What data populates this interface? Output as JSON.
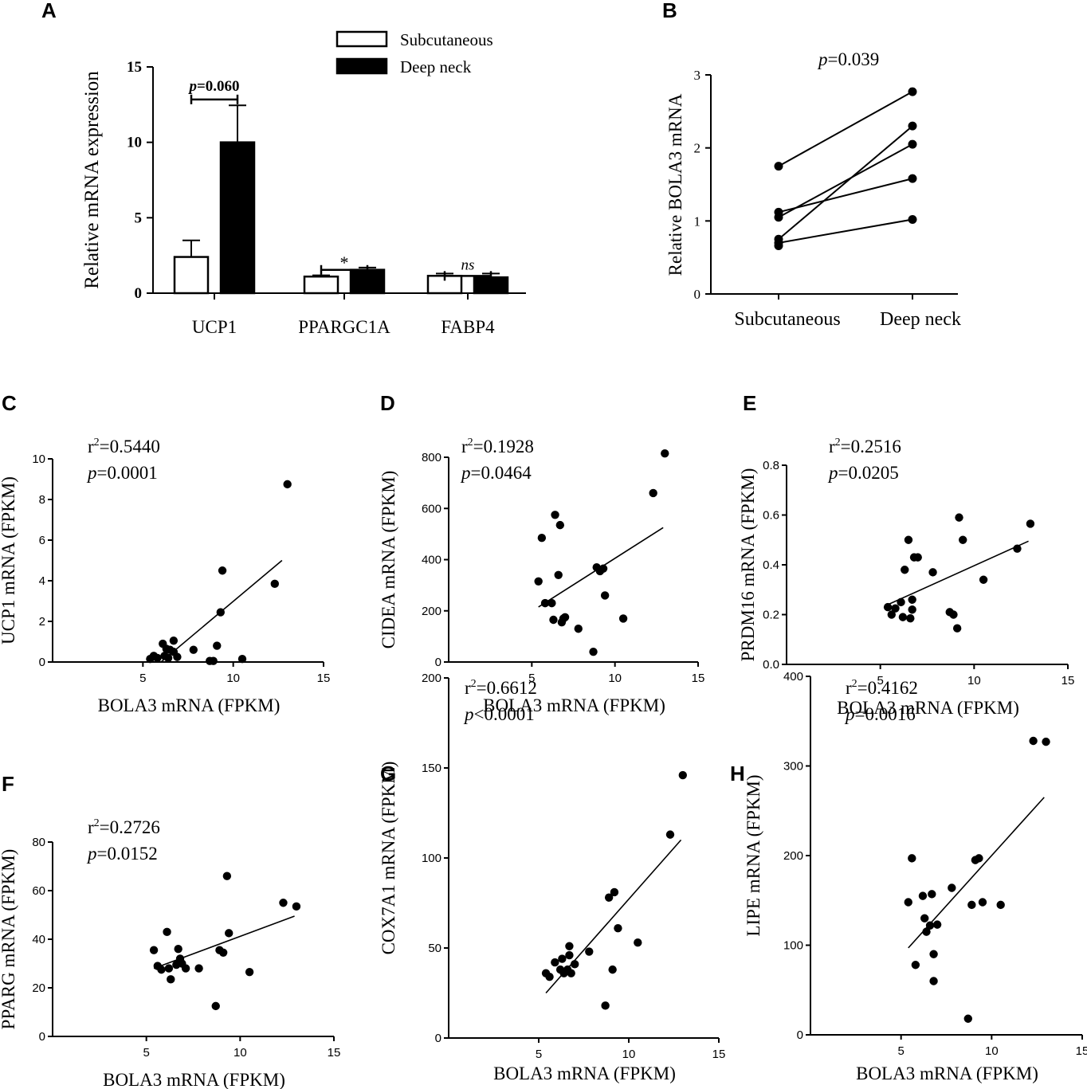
{
  "chart_data": [
    {
      "panel": "A",
      "type": "bar",
      "ylabel": "Relative mRNA expression",
      "ylim": [
        0,
        15
      ],
      "yticks": [
        0,
        5,
        10,
        15
      ],
      "categories": [
        "UCP1",
        "PPARGC1A",
        "FABP4"
      ],
      "series": [
        {
          "name": "Subcutaneous",
          "color": "#ffffff",
          "values": [
            2.4,
            1.1,
            1.15
          ],
          "errors": [
            1.1,
            0.08,
            0.15
          ]
        },
        {
          "name": "Deep neck",
          "color": "#000000",
          "values": [
            10.0,
            1.55,
            1.05
          ],
          "errors": [
            2.45,
            0.15,
            0.25
          ]
        }
      ],
      "annotations": [
        {
          "category": 0,
          "prefix": "p",
          "text": "=0.060",
          "style": "p-bold",
          "y": 13.9
        },
        {
          "category": 1,
          "text": "*",
          "style": "plain",
          "y": 2.6
        },
        {
          "category": 2,
          "text": "ns",
          "style": "italic",
          "y": 2.2
        }
      ]
    },
    {
      "panel": "B",
      "type": "line",
      "ylabel": "Relative BOLA3 mRNA",
      "categories": [
        "Subcutaneous",
        "Deep neck"
      ],
      "ylim": [
        0,
        3
      ],
      "yticks": [
        0,
        1,
        2,
        3
      ],
      "pairs": [
        [
          1.75,
          2.77
        ],
        [
          1.12,
          1.58
        ],
        [
          1.05,
          2.05
        ],
        [
          0.75,
          2.3
        ],
        [
          0.7,
          1.02
        ]
      ],
      "extra_points": [
        [
          0,
          0.66
        ]
      ],
      "stat_prefix": "p",
      "stat": "=0.039"
    },
    {
      "panel": "C",
      "type": "scatter",
      "xlabel": "BOLA3 mRNA (FPKM)",
      "ylabel": "UCP1 mRNA (FPKM)",
      "xlim": [
        0,
        15
      ],
      "ylim": [
        0,
        10
      ],
      "xticks": [
        5,
        10,
        15
      ],
      "yticks": [
        0,
        2,
        4,
        6,
        8,
        10
      ],
      "r2": "=0.5440",
      "pval": "=0.0001",
      "fit": [
        [
          6.0,
          0.0
        ],
        [
          12.7,
          5.0
        ]
      ],
      "points": [
        [
          5.4,
          0.15
        ],
        [
          5.6,
          0.3
        ],
        [
          5.8,
          0.2
        ],
        [
          6.1,
          0.9
        ],
        [
          6.2,
          0.3
        ],
        [
          6.3,
          0.65
        ],
        [
          6.4,
          0.2
        ],
        [
          6.5,
          0.6
        ],
        [
          6.7,
          1.05
        ],
        [
          6.7,
          0.5
        ],
        [
          6.9,
          0.25
        ],
        [
          7.8,
          0.6
        ],
        [
          8.7,
          0.05
        ],
        [
          8.9,
          0.05
        ],
        [
          9.1,
          0.8
        ],
        [
          9.3,
          2.45
        ],
        [
          9.4,
          4.5
        ],
        [
          10.5,
          0.15
        ],
        [
          12.3,
          3.85
        ],
        [
          13.0,
          8.75
        ]
      ]
    },
    {
      "panel": "D",
      "type": "scatter",
      "xlabel": "BOLA3 mRNA (FPKM)",
      "ylabel": "CIDEA mRNA (FPKM)",
      "xlim": [
        0,
        15
      ],
      "ylim": [
        0,
        850
      ],
      "xticks": [
        5,
        10,
        15
      ],
      "yticks": [
        0,
        200,
        400,
        600,
        800
      ],
      "r2": "=0.1928",
      "pval": "=0.0464",
      "fit": [
        [
          5.4,
          215
        ],
        [
          12.9,
          525
        ]
      ],
      "points": [
        [
          5.4,
          315
        ],
        [
          5.6,
          485
        ],
        [
          5.8,
          230
        ],
        [
          6.2,
          230
        ],
        [
          6.3,
          165
        ],
        [
          6.4,
          575
        ],
        [
          6.6,
          340
        ],
        [
          6.7,
          535
        ],
        [
          6.8,
          155
        ],
        [
          6.9,
          170
        ],
        [
          7.0,
          175
        ],
        [
          7.8,
          130
        ],
        [
          8.7,
          40
        ],
        [
          8.9,
          370
        ],
        [
          9.1,
          355
        ],
        [
          9.3,
          365
        ],
        [
          9.4,
          260
        ],
        [
          10.5,
          170
        ],
        [
          12.3,
          660
        ],
        [
          13.0,
          815
        ]
      ]
    },
    {
      "panel": "E",
      "type": "scatter",
      "xlabel": "BOLA3 mRNA (FPKM)",
      "ylabel": "PRDM16 mRNA (FPKM)",
      "xlim": [
        0,
        15
      ],
      "ylim": [
        0,
        0.8
      ],
      "xticks": [
        5,
        10,
        15
      ],
      "yticks": [
        0,
        0.2,
        0.4,
        0.6,
        0.8
      ],
      "ytickfmt": 1,
      "r2": "=0.2516",
      "pval": "=0.0205",
      "fit": [
        [
          5.4,
          0.24
        ],
        [
          12.9,
          0.495
        ]
      ],
      "points": [
        [
          5.4,
          0.23
        ],
        [
          5.6,
          0.2
        ],
        [
          5.8,
          0.225
        ],
        [
          6.1,
          0.25
        ],
        [
          6.2,
          0.19
        ],
        [
          6.3,
          0.38
        ],
        [
          6.5,
          0.5
        ],
        [
          6.6,
          0.185
        ],
        [
          6.7,
          0.22
        ],
        [
          6.7,
          0.26
        ],
        [
          6.8,
          0.43
        ],
        [
          7.0,
          0.43
        ],
        [
          7.8,
          0.37
        ],
        [
          8.7,
          0.21
        ],
        [
          8.9,
          0.2
        ],
        [
          9.1,
          0.145
        ],
        [
          9.2,
          0.59
        ],
        [
          9.4,
          0.5
        ],
        [
          10.5,
          0.34
        ],
        [
          12.3,
          0.465
        ],
        [
          13.0,
          0.565
        ]
      ]
    },
    {
      "panel": "F",
      "type": "scatter",
      "xlabel": "BOLA3 mRNA (FPKM)",
      "ylabel": "PPARG mRNA (FPKM)",
      "xlim": [
        0,
        15
      ],
      "ylim": [
        0,
        80
      ],
      "xticks": [
        5,
        10,
        15
      ],
      "yticks": [
        0,
        20,
        40,
        60,
        80
      ],
      "r2": "=0.2726",
      "pval": "=0.0152",
      "fit": [
        [
          5.4,
          28
        ],
        [
          12.9,
          49.5
        ]
      ],
      "points": [
        [
          5.4,
          35.5
        ],
        [
          5.6,
          29
        ],
        [
          5.8,
          27.5
        ],
        [
          6.1,
          43
        ],
        [
          6.2,
          28
        ],
        [
          6.3,
          23.5
        ],
        [
          6.6,
          29.5
        ],
        [
          6.7,
          36
        ],
        [
          6.8,
          32
        ],
        [
          6.9,
          30
        ],
        [
          7.1,
          28
        ],
        [
          7.8,
          28
        ],
        [
          8.7,
          12.5
        ],
        [
          8.9,
          35.5
        ],
        [
          9.1,
          34.5
        ],
        [
          9.3,
          66
        ],
        [
          9.4,
          42.5
        ],
        [
          10.5,
          26.5
        ],
        [
          12.3,
          55
        ],
        [
          13.0,
          53.5
        ]
      ]
    },
    {
      "panel": "G",
      "type": "scatter",
      "xlabel": "BOLA3 mRNA (FPKM)",
      "ylabel": "COX7A1 mRNA (FPKM)",
      "xlim": [
        0,
        15
      ],
      "ylim": [
        0,
        200
      ],
      "xticks": [
        5,
        10,
        15
      ],
      "yticks": [
        0,
        50,
        100,
        150,
        200
      ],
      "r2": "=0.6612",
      "pval": "<0.0001",
      "fit": [
        [
          5.4,
          25
        ],
        [
          12.9,
          110
        ]
      ],
      "points": [
        [
          5.4,
          36
        ],
        [
          5.6,
          34
        ],
        [
          5.9,
          42
        ],
        [
          6.2,
          38
        ],
        [
          6.3,
          44
        ],
        [
          6.4,
          36
        ],
        [
          6.6,
          38
        ],
        [
          6.7,
          46
        ],
        [
          6.7,
          51
        ],
        [
          6.8,
          36
        ],
        [
          7.0,
          41
        ],
        [
          7.8,
          48
        ],
        [
          8.7,
          18
        ],
        [
          8.9,
          78
        ],
        [
          9.1,
          38
        ],
        [
          9.2,
          81
        ],
        [
          9.4,
          61
        ],
        [
          10.5,
          53
        ],
        [
          12.3,
          113
        ],
        [
          13.0,
          146
        ]
      ]
    },
    {
      "panel": "H",
      "type": "scatter",
      "xlabel": "BOLA3 mRNA (FPKM)",
      "ylabel": "LIPE mRNA (FPKM)",
      "xlim": [
        0,
        15
      ],
      "ylim": [
        0,
        400
      ],
      "xticks": [
        5,
        10,
        15
      ],
      "yticks": [
        0,
        100,
        200,
        300,
        400
      ],
      "r2": "=0.4162",
      "pval": "=0.0016",
      "fit": [
        [
          5.4,
          97
        ],
        [
          12.9,
          265
        ]
      ],
      "points": [
        [
          5.4,
          148
        ],
        [
          5.6,
          197
        ],
        [
          5.8,
          78
        ],
        [
          6.2,
          155
        ],
        [
          6.3,
          130
        ],
        [
          6.4,
          115
        ],
        [
          6.6,
          122
        ],
        [
          6.7,
          157
        ],
        [
          6.8,
          60
        ],
        [
          6.8,
          90
        ],
        [
          7.0,
          123
        ],
        [
          7.8,
          164
        ],
        [
          8.7,
          18
        ],
        [
          8.9,
          145
        ],
        [
          9.1,
          195
        ],
        [
          9.3,
          197
        ],
        [
          9.5,
          148
        ],
        [
          10.5,
          145
        ],
        [
          12.3,
          328
        ],
        [
          13.0,
          327
        ]
      ]
    }
  ]
}
